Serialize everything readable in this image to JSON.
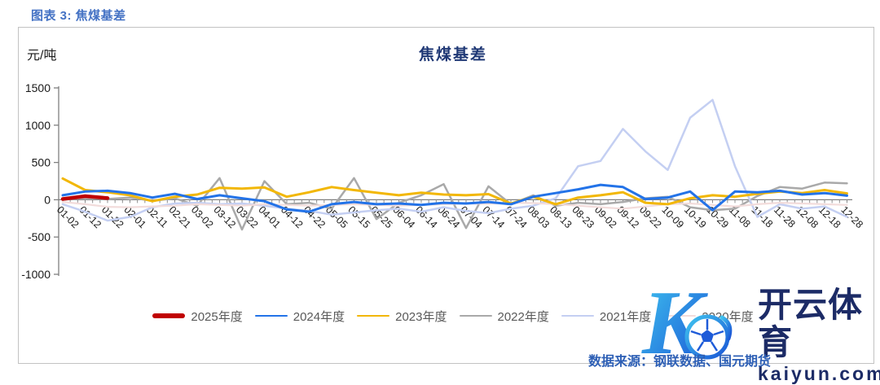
{
  "header": {
    "caption": "图表 3: 焦煤基差"
  },
  "chart": {
    "title": "焦煤基差",
    "unit_label": "元/吨"
  },
  "watermark": {
    "logo_letter": "K",
    "brand": "开云体育",
    "domain": "kaiyun.com"
  },
  "source": {
    "text": "数据来源：钢联数据、国元期货"
  },
  "chart_data": {
    "type": "line",
    "title": "焦煤基差",
    "ylabel": "元/吨",
    "ylim": [
      -1000,
      1500
    ],
    "yticks": [
      1500,
      1000,
      500,
      0,
      -500,
      -1000
    ],
    "grid": false,
    "legend_position": "bottom",
    "categories": [
      "01-02",
      "01-12",
      "01-22",
      "02-01",
      "02-11",
      "02-21",
      "03-02",
      "03-12",
      "03-22",
      "04-01",
      "04-12",
      "04-22",
      "05-05",
      "05-15",
      "05-25",
      "06-04",
      "06-14",
      "06-24",
      "07-04",
      "07-14",
      "07-24",
      "08-03",
      "08-13",
      "08-23",
      "09-02",
      "09-12",
      "09-22",
      "10-09",
      "10-19",
      "10-29",
      "11-08",
      "11-18",
      "11-28",
      "12-08",
      "12-18",
      "12-28"
    ],
    "series": [
      {
        "name": "2025年度",
        "color": "#c00000",
        "width": 4.5,
        "values": [
          10,
          48,
          22,
          null,
          null,
          null,
          null,
          null,
          null,
          null,
          null,
          null,
          null,
          null,
          null,
          null,
          null,
          null,
          null,
          null,
          null,
          null,
          null,
          null,
          null,
          null,
          null,
          null,
          null,
          null,
          null,
          null,
          null,
          null,
          null,
          null
        ]
      },
      {
        "name": "2024年度",
        "color": "#2373e8",
        "width": 3,
        "values": [
          60,
          110,
          120,
          90,
          30,
          80,
          10,
          60,
          20,
          -20,
          -130,
          -160,
          -60,
          -30,
          -60,
          -50,
          -70,
          -40,
          -50,
          -30,
          -60,
          40,
          90,
          140,
          200,
          170,
          10,
          30,
          110,
          -140,
          110,
          100,
          120,
          70,
          90,
          55
        ]
      },
      {
        "name": "2023年度",
        "color": "#f2b705",
        "width": 3,
        "values": [
          285,
          130,
          100,
          60,
          -20,
          40,
          70,
          160,
          150,
          165,
          40,
          100,
          170,
          130,
          95,
          60,
          95,
          70,
          60,
          75,
          -50,
          40,
          -60,
          30,
          60,
          100,
          -40,
          -60,
          20,
          60,
          40,
          80,
          110,
          90,
          130,
          85
        ]
      },
      {
        "name": "2022年度",
        "color": "#a9a9a9",
        "width": 2.5,
        "values": [
          0,
          25,
          10,
          30,
          -15,
          20,
          -80,
          290,
          -400,
          250,
          -60,
          -40,
          -120,
          290,
          -260,
          -40,
          60,
          210,
          -380,
          180,
          -60,
          60,
          -80,
          -40,
          -60,
          -30,
          20,
          40,
          -100,
          -140,
          -120,
          50,
          170,
          150,
          230,
          220
        ]
      },
      {
        "name": "2021年度",
        "color": "#c4cff2",
        "width": 2.5,
        "values": [
          -60,
          -160,
          -280,
          -230,
          -100,
          -50,
          -40,
          -60,
          -50,
          -80,
          -120,
          -150,
          -200,
          -170,
          -140,
          -120,
          -160,
          -100,
          -150,
          -180,
          -120,
          -80,
          20,
          450,
          520,
          950,
          650,
          400,
          1100,
          1340,
          450,
          -230,
          -60,
          -120,
          -90,
          -230
        ]
      },
      {
        "name": "2020年度",
        "color": "#f2dcdb",
        "width": 2.2,
        "values": [
          -30,
          -60,
          -95,
          -100,
          -90,
          -80,
          -60,
          -70,
          -80,
          -60,
          -70,
          -80,
          -70,
          -60,
          -70,
          -80,
          -70,
          -60,
          -50,
          -55,
          -40,
          -45,
          -60,
          -80,
          -100,
          -120,
          -90,
          -60,
          -50,
          -70,
          -90,
          -60,
          -40,
          -50,
          -60,
          -70
        ]
      }
    ]
  }
}
